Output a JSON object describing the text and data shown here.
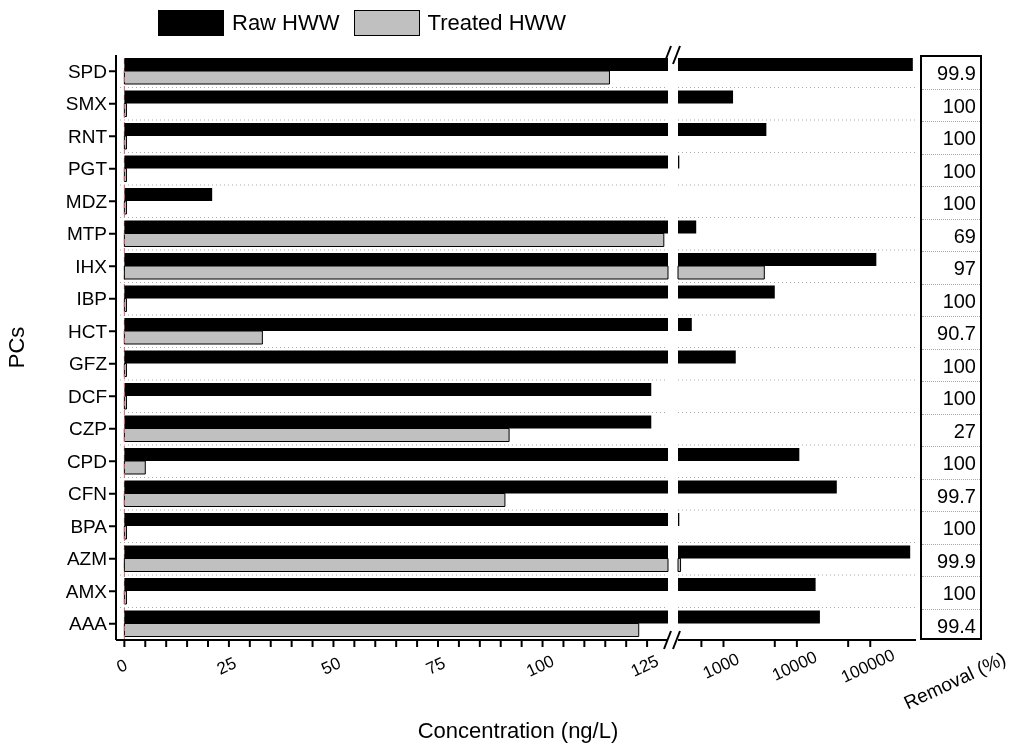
{
  "chart_data": [
    {
      "type": "bar",
      "orientation": "horizontal",
      "xlabel": "Concentration (ng/L)",
      "ylabel": "PCs",
      "legend": "top left",
      "grid": "y",
      "categories": [
        "SPD",
        "SMX",
        "RNT",
        "PGT",
        "MDZ",
        "MTP",
        "IHX",
        "IBP",
        "HCT",
        "GFZ",
        "DCF",
        "CZP",
        "CPD",
        "CFN",
        "BPA",
        "AZM",
        "AMX",
        "AAA"
      ],
      "series": [
        {
          "name": "Raw HWW",
          "color": "#000000",
          "values": [
            null,
            null,
            null,
            null,
            21,
            null,
            null,
            null,
            null,
            null,
            126,
            126,
            null,
            null,
            null,
            null,
            null,
            null
          ]
        },
        {
          "name": "Treated HWW",
          "color": "#c0c0c0",
          "values": [
            116,
            0.5,
            0.5,
            0.5,
            0.5,
            129,
            null,
            0.5,
            33,
            0.5,
            0.5,
            92,
            5,
            91,
            0.5,
            null,
            0.5,
            123
          ]
        }
      ],
      "xlim": [
        -2,
        130
      ],
      "xticks": [
        0,
        {
          "value": 5,
          "label": null
        },
        {
          "value": 10,
          "label": null
        },
        {
          "value": 15,
          "label": null
        },
        {
          "value": 20,
          "label": null
        },
        25,
        {
          "value": 30,
          "label": null
        },
        {
          "value": 35,
          "label": null
        },
        {
          "value": 40,
          "label": null
        },
        {
          "value": 45,
          "label": null
        },
        50,
        {
          "value": 55,
          "label": null
        },
        {
          "value": 60,
          "label": null
        },
        {
          "value": 65,
          "label": null
        },
        {
          "value": 70,
          "label": null
        },
        75,
        {
          "value": 80,
          "label": null
        },
        {
          "value": 85,
          "label": null
        },
        {
          "value": 90,
          "label": null
        },
        {
          "value": 95,
          "label": null
        },
        100,
        {
          "value": 105,
          "label": null
        },
        {
          "value": 110,
          "label": null
        },
        {
          "value": 115,
          "label": null
        },
        {
          "value": 120,
          "label": null
        },
        125
      ],
      "ref_lines": [
        {
          "axis": "x",
          "value": 0,
          "color": "#e06060",
          "line_style": "dashed"
        }
      ]
    },
    {
      "type": "bar",
      "orientation": "horizontal",
      "log": "x",
      "grid": "y",
      "tick_labels": "x",
      "series": [
        {
          "color": "#000000",
          "values": [
            380000,
            1350,
            3840,
            250,
            null,
            425,
            121000,
            5000,
            370,
            1470,
            null,
            null,
            10800,
            35000,
            250,
            350000,
            18000,
            20600
          ]
        },
        {
          "color": "#c0c0c0",
          "values": [
            null,
            null,
            null,
            null,
            null,
            null,
            3600,
            null,
            null,
            null,
            null,
            null,
            null,
            null,
            null,
            260,
            null,
            null
          ]
        }
      ],
      "xlim": [
        240,
        420000
      ],
      "xticks": [
        {
          "value": 500,
          "label": null
        },
        1000,
        {
          "value": 5000,
          "label": null
        },
        10000,
        {
          "value": 50000,
          "label": null
        },
        100000
      ]
    },
    {
      "type": "other",
      "xlabel": "Removal (%)",
      "data_labels": true,
      "values": [
        99.9,
        100,
        100,
        100,
        100,
        69,
        97,
        100,
        90.7,
        100,
        100,
        27,
        100,
        99.7,
        100,
        99.9,
        100,
        99.4
      ]
    }
  ]
}
